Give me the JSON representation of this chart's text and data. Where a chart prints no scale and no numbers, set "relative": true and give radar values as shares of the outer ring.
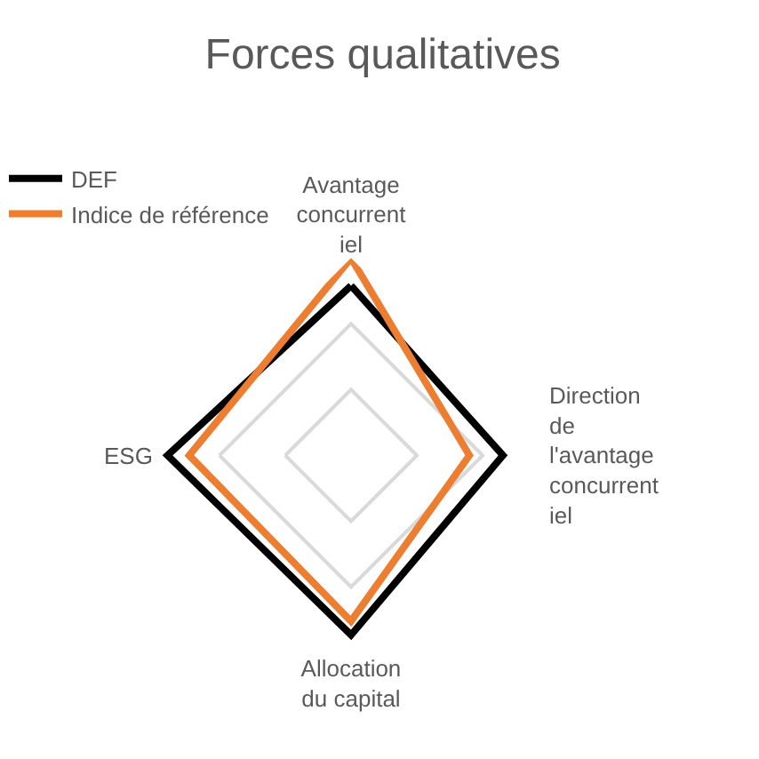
{
  "chart_data": {
    "type": "radar",
    "title": "Forces qualitatives",
    "relative": true,
    "grid": true,
    "legend": "top left",
    "marker": "none",
    "line_style": "solid",
    "categories": [
      "Avantage concurrentiel",
      "Direction de l'avantage concurrentiel",
      "Allocation du capital",
      "ESG"
    ],
    "series": [
      {
        "name": "DEF",
        "color": "#000000",
        "values": [
          0.86,
          0.77,
          0.91,
          0.93
        ]
      },
      {
        "name": "Indice de référence",
        "color": "#ed7d31",
        "values": [
          1.0,
          0.6,
          0.84,
          0.82
        ]
      }
    ]
  }
}
